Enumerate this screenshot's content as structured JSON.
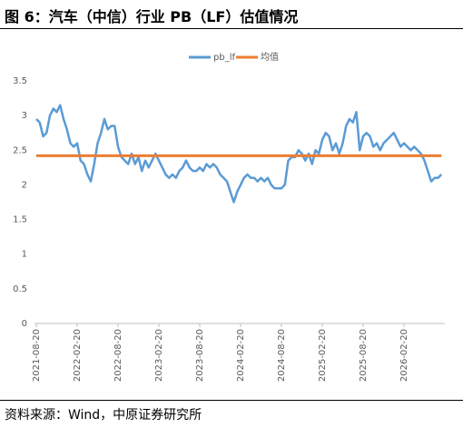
{
  "title": "图 6：汽车（中信）行业 PB（LF）估值情况",
  "source": "资料来源：Wind，中原证券研究所",
  "chart_data": {
    "type": "line",
    "categories": [
      "2021-08-20",
      null,
      null,
      null,
      null,
      null,
      null,
      null,
      null,
      null,
      null,
      null,
      "2022-02-20",
      null,
      null,
      null,
      null,
      null,
      null,
      null,
      null,
      null,
      null,
      null,
      "2022-08-20",
      null,
      null,
      null,
      null,
      null,
      null,
      null,
      null,
      null,
      null,
      null,
      "2023-02-20",
      null,
      null,
      null,
      null,
      null,
      null,
      null,
      null,
      null,
      null,
      null,
      "2023-08-20",
      null,
      null,
      null,
      null,
      null,
      null,
      null,
      null,
      null,
      null,
      null,
      "2024-02-20",
      null,
      null,
      null,
      null,
      null,
      null,
      null,
      null,
      null,
      null,
      null,
      "2024-08-20",
      null,
      null,
      null,
      null,
      null,
      null,
      null,
      null,
      null,
      null,
      null,
      "2025-02-20",
      null,
      null,
      null,
      null,
      null,
      null,
      null,
      null,
      null,
      null,
      null,
      "2025-08-20",
      null,
      null,
      null,
      null,
      null,
      null,
      null,
      null,
      null,
      null,
      null,
      "2026-02-20",
      null,
      null,
      null,
      null,
      null,
      null,
      null,
      null,
      null,
      null,
      null
    ],
    "series": [
      {
        "name": "pb_lf",
        "color": "#5b9bd5",
        "values": [
          2.95,
          2.9,
          2.7,
          2.75,
          3.0,
          3.1,
          3.05,
          3.15,
          2.95,
          2.8,
          2.6,
          2.55,
          2.6,
          2.35,
          2.3,
          2.15,
          2.05,
          2.3,
          2.6,
          2.75,
          2.95,
          2.8,
          2.85,
          2.85,
          2.55,
          2.4,
          2.35,
          2.3,
          2.45,
          2.3,
          2.4,
          2.2,
          2.35,
          2.25,
          2.35,
          2.45,
          2.35,
          2.25,
          2.15,
          2.1,
          2.15,
          2.1,
          2.2,
          2.25,
          2.35,
          2.25,
          2.2,
          2.2,
          2.25,
          2.2,
          2.3,
          2.25,
          2.3,
          2.25,
          2.15,
          2.1,
          2.05,
          1.9,
          1.75,
          1.9,
          2.0,
          2.1,
          2.15,
          2.1,
          2.1,
          2.05,
          2.1,
          2.05,
          2.1,
          2.0,
          1.95,
          1.95,
          1.95,
          2.0,
          2.35,
          2.4,
          2.4,
          2.5,
          2.45,
          2.35,
          2.45,
          2.3,
          2.5,
          2.45,
          2.65,
          2.75,
          2.7,
          2.5,
          2.6,
          2.45,
          2.6,
          2.85,
          2.95,
          2.9,
          3.05,
          2.5,
          2.7,
          2.75,
          2.7,
          2.55,
          2.6,
          2.5,
          2.6,
          2.65,
          2.7,
          2.75,
          2.65,
          2.55,
          2.6,
          2.55,
          2.5,
          2.55,
          2.5,
          2.45,
          2.35,
          2.2,
          2.05,
          2.1,
          2.1,
          2.15
        ]
      },
      {
        "name": "均值",
        "color": "#ed7d31",
        "values": [
          2.42,
          2.42,
          2.42,
          2.42,
          2.42,
          2.42,
          2.42,
          2.42,
          2.42,
          2.42,
          2.42,
          2.42,
          2.42,
          2.42,
          2.42,
          2.42,
          2.42,
          2.42,
          2.42,
          2.42,
          2.42,
          2.42,
          2.42,
          2.42,
          2.42,
          2.42,
          2.42,
          2.42,
          2.42,
          2.42,
          2.42,
          2.42,
          2.42,
          2.42,
          2.42,
          2.42,
          2.42,
          2.42,
          2.42,
          2.42,
          2.42,
          2.42,
          2.42,
          2.42,
          2.42,
          2.42,
          2.42,
          2.42,
          2.42,
          2.42,
          2.42,
          2.42,
          2.42,
          2.42,
          2.42,
          2.42,
          2.42,
          2.42,
          2.42,
          2.42,
          2.42,
          2.42,
          2.42,
          2.42,
          2.42,
          2.42,
          2.42,
          2.42,
          2.42,
          2.42,
          2.42,
          2.42,
          2.42,
          2.42,
          2.42,
          2.42,
          2.42,
          2.42,
          2.42,
          2.42,
          2.42,
          2.42,
          2.42,
          2.42,
          2.42,
          2.42,
          2.42,
          2.42,
          2.42,
          2.42,
          2.42,
          2.42,
          2.42,
          2.42,
          2.42,
          2.42,
          2.42,
          2.42,
          2.42,
          2.42,
          2.42,
          2.42,
          2.42,
          2.42,
          2.42,
          2.42,
          2.42,
          2.42,
          2.42,
          2.42,
          2.42,
          2.42,
          2.42,
          2.42,
          2.42,
          2.42,
          2.42,
          2.42,
          2.42,
          2.42
        ]
      }
    ],
    "ylim": [
      0,
      3.5
    ],
    "yticks": [
      0,
      0.5,
      1,
      1.5,
      2,
      2.5,
      3,
      3.5
    ],
    "grid": false,
    "legend": "top"
  }
}
